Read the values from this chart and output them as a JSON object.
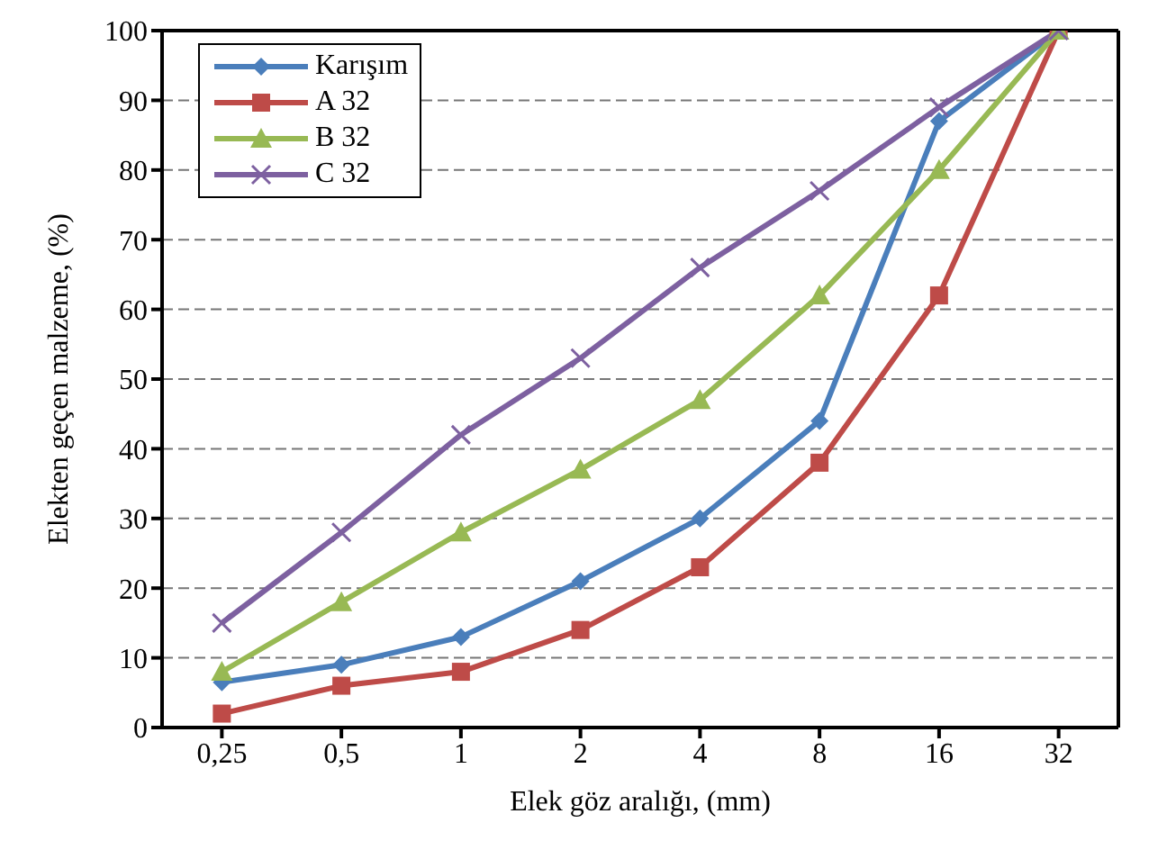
{
  "chart_data": {
    "type": "line",
    "xlabel": "Elek göz aralığı, (mm)",
    "ylabel": "Elekten geçen malzeme, (%)",
    "categories": [
      "0,25",
      "0,5",
      "1",
      "2",
      "4",
      "8",
      "16",
      "32"
    ],
    "series": [
      {
        "name": "Karışım",
        "color": "#4a7ebb",
        "marker": "diamond",
        "values": [
          6.5,
          9,
          13,
          21,
          30,
          44,
          87,
          100
        ]
      },
      {
        "name": "A 32",
        "color": "#be4b48",
        "marker": "square",
        "values": [
          2,
          6,
          8,
          14,
          23,
          38,
          62,
          100
        ]
      },
      {
        "name": "B 32",
        "color": "#98b954",
        "marker": "triangle",
        "values": [
          8,
          18,
          28,
          37,
          47,
          62,
          80,
          100
        ]
      },
      {
        "name": "C 32",
        "color": "#7d60a0",
        "marker": "cross",
        "values": [
          15,
          28,
          42,
          53,
          66,
          77,
          89,
          100
        ]
      }
    ],
    "ylim": [
      0,
      100
    ],
    "yticks": [
      0,
      10,
      20,
      30,
      40,
      50,
      60,
      70,
      80,
      90,
      100
    ],
    "grid": "y",
    "legend": "top left",
    "line_style": "solid"
  }
}
